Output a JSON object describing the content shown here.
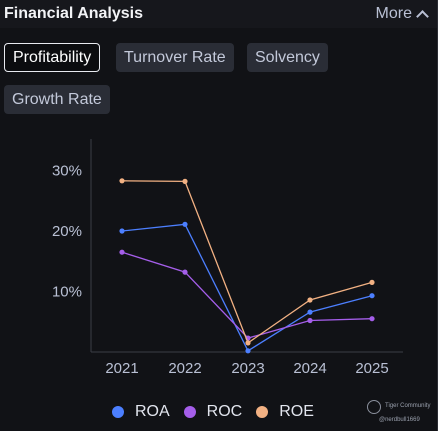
{
  "header": {
    "title": "Financial Analysis",
    "more_label": "More"
  },
  "tabs": [
    {
      "label": "Profitability",
      "active": true
    },
    {
      "label": "Turnover Rate",
      "active": false
    },
    {
      "label": "Solvency",
      "active": false
    },
    {
      "label": "Growth Rate",
      "active": false
    }
  ],
  "chart_data": {
    "type": "line",
    "x": [
      "2021",
      "2022",
      "2023",
      "2024",
      "2025"
    ],
    "y_ticks": [
      10,
      20,
      30
    ],
    "y_tick_labels": [
      "10%",
      "20%",
      "30%"
    ],
    "ylim": [
      0,
      35
    ],
    "series": [
      {
        "name": "ROA",
        "color": "#4c7fff",
        "values": [
          20.0,
          21.1,
          0.2,
          6.6,
          9.3
        ]
      },
      {
        "name": "ROC",
        "color": "#a55eea",
        "values": [
          16.5,
          13.2,
          2.3,
          5.2,
          5.5
        ]
      },
      {
        "name": "ROE",
        "color": "#f2b183",
        "values": [
          28.3,
          28.2,
          1.5,
          8.6,
          11.5
        ]
      }
    ],
    "legend_position": "bottom",
    "grid": false
  },
  "watermark": {
    "brand": "Tiger Community",
    "user": "@nerdbull1669"
  }
}
